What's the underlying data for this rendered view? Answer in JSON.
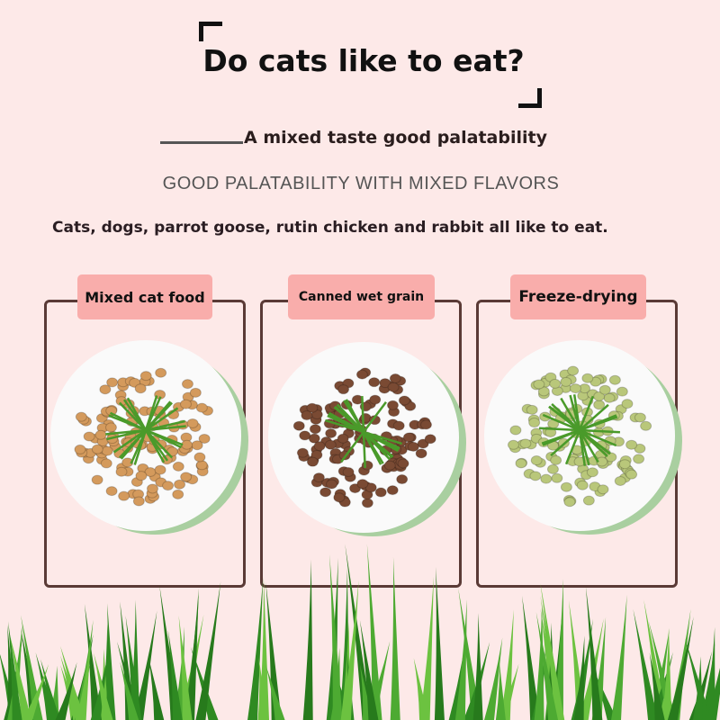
{
  "header": {
    "title": "Do cats like to eat?",
    "subtitle": "A mixed taste good palatability",
    "caps": "GOOD PALATABILITY WITH MIXED FLAVORS",
    "description": "Cats, dogs, parrot goose, rutin chicken and rabbit all like to eat."
  },
  "cards": [
    {
      "label": "Mixed cat food",
      "food_color": "#d49a5c"
    },
    {
      "label": "Canned wet grain",
      "food_color": "#7a4a33"
    },
    {
      "label": "Freeze-drying",
      "food_color": "#b9c77a"
    }
  ],
  "colors": {
    "background": "#fde9e8",
    "label": "#f9adab",
    "frame": "#5a3a36",
    "grass": "#3c9a2e"
  }
}
